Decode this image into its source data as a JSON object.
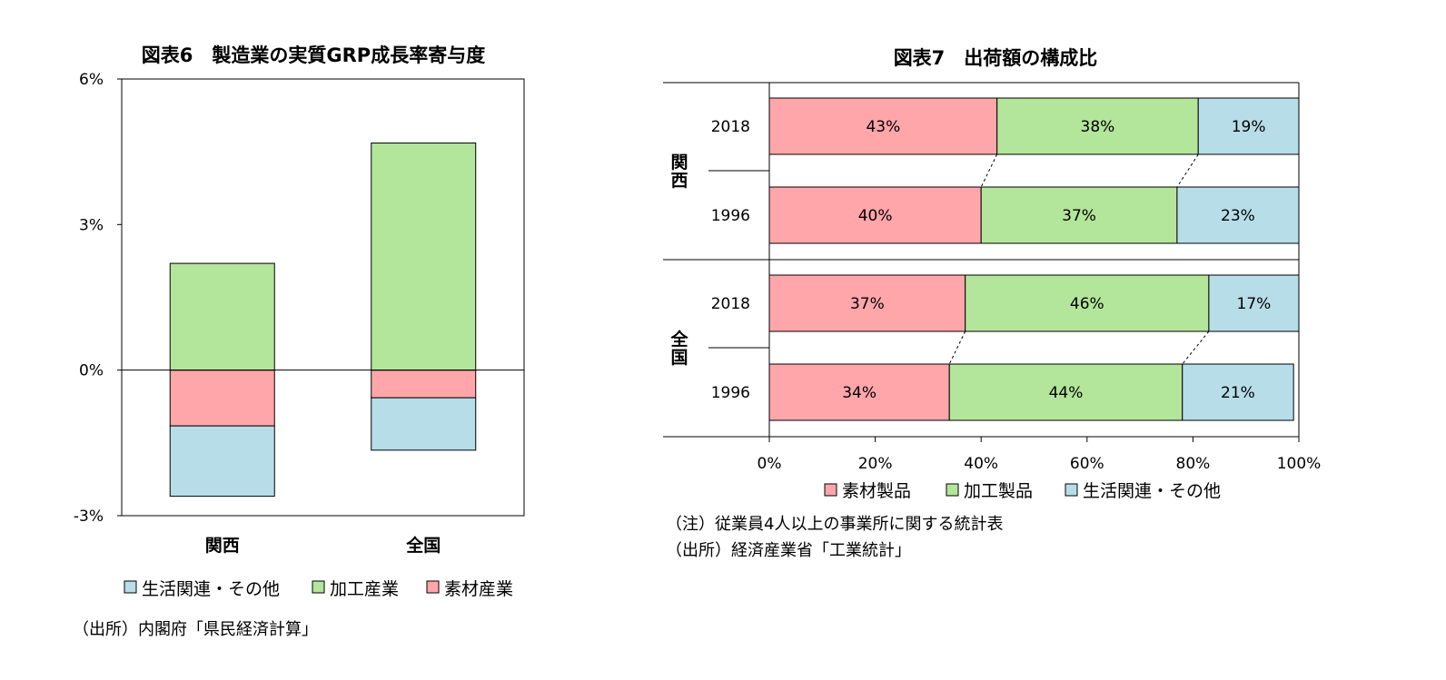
{
  "figure6": {
    "title": "図表6　製造業の実質GRP成長率寄与度",
    "source": "（出所）内閣府「県民経済計算」",
    "legend_order": [
      "生活関連・その他",
      "加工産業",
      "素材産業"
    ]
  },
  "figure7": {
    "title": "図表7　出荷額の構成比",
    "note": "（注）従業員4人以上の事業所に関する統計表",
    "source": "（出所）経済産業省「工業統計」"
  },
  "colors": {
    "素材": "#ffa6aa",
    "加工": "#b3e59a",
    "生活": "#b7dde8"
  },
  "chart_data": [
    {
      "type": "bar",
      "stacked": true,
      "title": "図表6　製造業の実質GRP成長率寄与度",
      "categories": [
        "関西",
        "全国"
      ],
      "series": [
        {
          "name": "素材産業",
          "values": [
            -1.15,
            -0.57
          ],
          "color": "#ffa6aa"
        },
        {
          "name": "加工産業",
          "values": [
            2.2,
            4.68
          ],
          "color": "#b3e59a"
        },
        {
          "name": "生活関連・その他",
          "values": [
            -1.45,
            -1.08
          ],
          "color": "#b7dde8"
        }
      ],
      "ylim": [
        -3,
        6
      ],
      "yticks": [
        "6%",
        "3%",
        "0%",
        "-3%"
      ],
      "ytick_values": [
        6,
        3,
        0,
        -3
      ],
      "grid": false,
      "legend": "bottom"
    },
    {
      "type": "bar",
      "orientation": "horizontal",
      "stacked": true,
      "percent": true,
      "title": "図表7　出荷額の構成比",
      "groups": [
        {
          "name": "関西",
          "rows": [
            {
              "label": "2018",
              "values": [
                43,
                38,
                19
              ]
            },
            {
              "label": "1996",
              "values": [
                40,
                37,
                23
              ]
            }
          ]
        },
        {
          "name": "全国",
          "rows": [
            {
              "label": "2018",
              "values": [
                37,
                46,
                17
              ]
            },
            {
              "label": "1996",
              "values": [
                34,
                44,
                21
              ]
            }
          ]
        }
      ],
      "series": [
        {
          "name": "素材製品",
          "color": "#ffa6aa"
        },
        {
          "name": "加工製品",
          "color": "#b3e59a"
        },
        {
          "name": "生活関連・その他",
          "color": "#b7dde8"
        }
      ],
      "xlim": [
        0,
        100
      ],
      "xticks": [
        "0%",
        "20%",
        "40%",
        "60%",
        "80%",
        "100%"
      ],
      "xtick_values": [
        0,
        20,
        40,
        60,
        80,
        100
      ],
      "legend": "bottom"
    }
  ]
}
